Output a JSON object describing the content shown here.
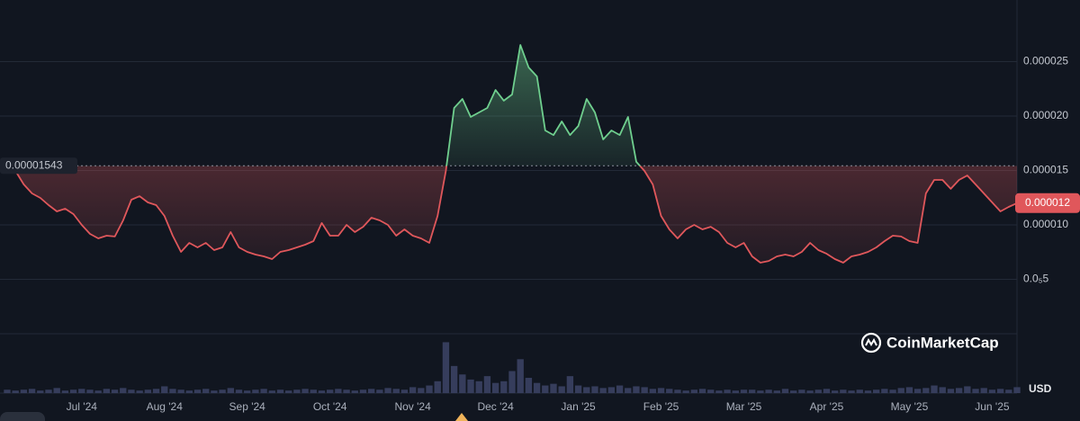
{
  "chart_data": {
    "type": "line",
    "categories": [
      null,
      null,
      null,
      null,
      null,
      null,
      null,
      null,
      null,
      "Jul '24",
      null,
      null,
      null,
      null,
      null,
      null,
      null,
      null,
      null,
      "Aug '24",
      null,
      null,
      null,
      null,
      null,
      null,
      null,
      null,
      null,
      "Sep '24",
      null,
      null,
      null,
      null,
      null,
      null,
      null,
      null,
      null,
      "Oct '24",
      null,
      null,
      null,
      null,
      null,
      null,
      null,
      null,
      null,
      "Nov '24",
      null,
      null,
      null,
      null,
      null,
      null,
      null,
      null,
      null,
      "Dec '24",
      null,
      null,
      null,
      null,
      null,
      null,
      null,
      null,
      null,
      "Jan '25",
      null,
      null,
      null,
      null,
      null,
      null,
      null,
      null,
      null,
      "Feb '25",
      null,
      null,
      null,
      null,
      null,
      null,
      null,
      null,
      null,
      "Mar '25",
      null,
      null,
      null,
      null,
      null,
      null,
      null,
      null,
      null,
      "Apr '25",
      null,
      null,
      null,
      null,
      null,
      null,
      null,
      null,
      null,
      "May '25",
      null,
      null,
      null,
      null,
      null,
      null,
      null,
      null,
      null,
      "Jun '25",
      null,
      null,
      null
    ],
    "values": [
      1.543e-05,
      1.496e-05,
      1.372e-05,
      1.289e-05,
      1.248e-05,
      1.182e-05,
      1.124e-05,
      1.149e-05,
      1.099e-05,
      1e-05,
      9.17e-06,
      8.76e-06,
      9.01e-06,
      8.93e-06,
      1.041e-05,
      1.231e-05,
      1.264e-05,
      1.207e-05,
      1.182e-05,
      1.083e-05,
      9.01e-06,
      7.52e-06,
      8.35e-06,
      7.93e-06,
      8.35e-06,
      7.69e-06,
      7.93e-06,
      9.34e-06,
      7.93e-06,
      7.52e-06,
      7.27e-06,
      7.11e-06,
      6.86e-06,
      7.52e-06,
      7.69e-06,
      7.93e-06,
      8.18e-06,
      8.51e-06,
      1.017e-05,
      9.01e-06,
      9.01e-06,
      1e-05,
      9.34e-06,
      9.83e-06,
      1.066e-05,
      1.041e-05,
      1e-05,
      9.01e-06,
      9.59e-06,
      9.01e-06,
      8.76e-06,
      8.35e-06,
      1.083e-05,
      1.496e-05,
      2.074e-05,
      2.157e-05,
      1.992e-05,
      2.033e-05,
      2.074e-05,
      2.24e-05,
      2.141e-05,
      2.198e-05,
      2.653e-05,
      2.446e-05,
      2.364e-05,
      1.868e-05,
      1.826e-05,
      1.95e-05,
      1.826e-05,
      1.909e-05,
      2.157e-05,
      2.033e-05,
      1.785e-05,
      1.868e-05,
      1.826e-05,
      1.992e-05,
      1.579e-05,
      1.496e-05,
      1.372e-05,
      1.083e-05,
      9.59e-06,
      8.76e-06,
      9.59e-06,
      1e-05,
      9.59e-06,
      9.83e-06,
      9.34e-06,
      8.35e-06,
      7.93e-06,
      8.35e-06,
      7.11e-06,
      6.53e-06,
      6.69e-06,
      7.11e-06,
      7.27e-06,
      7.11e-06,
      7.52e-06,
      8.35e-06,
      7.69e-06,
      7.35e-06,
      6.86e-06,
      6.53e-06,
      7.11e-06,
      7.27e-06,
      7.52e-06,
      7.93e-06,
      8.51e-06,
      9.01e-06,
      8.93e-06,
      8.51e-06,
      8.35e-06,
      1.289e-05,
      1.413e-05,
      1.413e-05,
      1.331e-05,
      1.413e-05,
      1.454e-05,
      1.372e-05,
      1.289e-05,
      1.207e-05,
      1.124e-05,
      1.165e-05,
      1.2e-05
    ],
    "volume": [
      4,
      3,
      4,
      5,
      3,
      4,
      6,
      3,
      4,
      5,
      4,
      3,
      5,
      4,
      6,
      4,
      3,
      4,
      5,
      8,
      5,
      4,
      3,
      4,
      5,
      3,
      4,
      6,
      4,
      3,
      4,
      5,
      3,
      4,
      3,
      4,
      5,
      4,
      3,
      4,
      5,
      4,
      3,
      4,
      5,
      4,
      6,
      5,
      4,
      7,
      6,
      9,
      14,
      60,
      32,
      22,
      16,
      14,
      20,
      12,
      14,
      26,
      40,
      18,
      12,
      9,
      11,
      8,
      20,
      9,
      7,
      8,
      6,
      7,
      9,
      6,
      8,
      7,
      5,
      6,
      5,
      4,
      3,
      4,
      5,
      4,
      3,
      4,
      3,
      4,
      4,
      3,
      4,
      3,
      5,
      3,
      4,
      3,
      4,
      5,
      3,
      4,
      3,
      4,
      3,
      4,
      5,
      4,
      6,
      7,
      5,
      6,
      9,
      7,
      5,
      6,
      8,
      5,
      6,
      4,
      5,
      4,
      7
    ],
    "volume_lim": [
      0,
      70
    ],
    "volume_color": "#363d5c",
    "colors": {
      "up": "#6fcf8e",
      "down": "#e0575b"
    },
    "baseline": 1.543e-05,
    "last_price": 1.2e-05,
    "ylim": [
      0,
      3e-05
    ],
    "yticks": [
      2.5e-05,
      {
        "value": 2e-05,
        "label": "0.000020"
      },
      1.5e-05,
      {
        "value": 1e-05,
        "label": "0.000010"
      },
      {
        "value": 5e-06,
        "label": "0.0₅5"
      }
    ],
    "grid": true,
    "currency": "USD",
    "watermark": "CoinMarketCap"
  }
}
